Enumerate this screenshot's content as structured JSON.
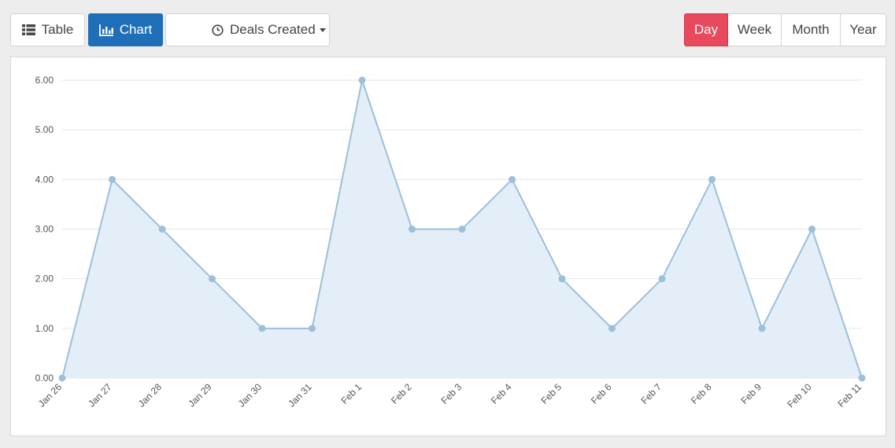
{
  "toolbar": {
    "table_label": "Table",
    "chart_label": "Chart",
    "metric_label": "Deals Created",
    "periods": [
      "Day",
      "Week",
      "Month",
      "Year"
    ],
    "active_period": "Day"
  },
  "colors": {
    "chart_active": "#1f6fb8",
    "day_active": "#e8495c",
    "line": "#9cbfda",
    "fill": "#e4eef8",
    "grid": "#e6e6e6"
  },
  "chart_data": {
    "type": "area",
    "categories": [
      "Jan 26",
      "Jan 27",
      "Jan 28",
      "Jan 29",
      "Jan 30",
      "Jan 31",
      "Feb 1",
      "Feb 2",
      "Feb 3",
      "Feb 4",
      "Feb 5",
      "Feb 6",
      "Feb 7",
      "Feb 8",
      "Feb 9",
      "Feb 10",
      "Feb 11"
    ],
    "values": [
      0,
      4,
      3,
      2,
      1,
      1,
      6,
      3,
      3,
      4,
      2,
      1,
      2,
      4,
      1,
      3,
      0
    ],
    "y_ticks": [
      "0.00",
      "1.00",
      "2.00",
      "3.00",
      "4.00",
      "5.00",
      "6.00"
    ],
    "ylim": [
      0,
      6
    ],
    "grid": true
  }
}
